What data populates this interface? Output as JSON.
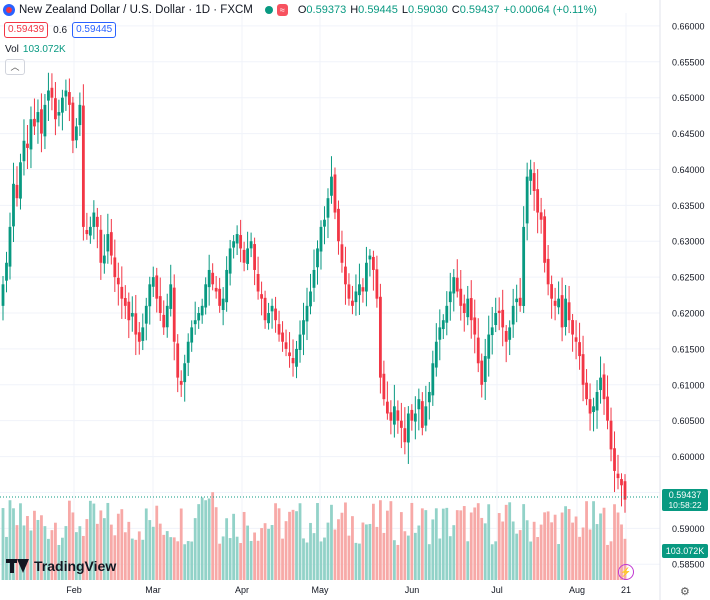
{
  "header": {
    "title": "New Zealand Dollar / U.S. Dollar · 1D · FXCM",
    "chip": "≈",
    "open_label": "O",
    "open": "0.59373",
    "high_label": "H",
    "high": "0.59445",
    "low_label": "L",
    "low": "0.59030",
    "close_label": "C",
    "close": "0.59437",
    "change": "+0.00064 (+0.11%)"
  },
  "quote": {
    "sell": "0.59439",
    "spread": "0.6",
    "buy": "0.59445"
  },
  "volume": {
    "label": "Vol",
    "value": "103.072K"
  },
  "collapse_icon": "chevron-up-icon",
  "logo_text": "TradingView",
  "colors": {
    "up": "#089981",
    "down": "#f23645",
    "vol_up": "#92d2c8",
    "vol_down": "#f7a9a7",
    "grid": "#f0f3fa",
    "price_line": "#089981"
  },
  "chart_data": {
    "type": "candlestick",
    "instrument": "NZDUSD",
    "interval": "1D",
    "y_axis": {
      "ticks": [
        "0.66000",
        "0.65500",
        "0.65000",
        "0.64500",
        "0.64000",
        "0.63500",
        "0.63000",
        "0.62500",
        "0.62000",
        "0.61500",
        "0.61000",
        "0.60500",
        "0.60000",
        "0.59500",
        "0.59000",
        "0.58500"
      ],
      "range": [
        0.5835,
        0.6618
      ]
    },
    "x_axis": {
      "ticks": [
        "Feb",
        "Mar",
        "Apr",
        "May",
        "Jun",
        "Jul",
        "Aug",
        "21"
      ]
    },
    "last_price": "0.59437",
    "countdown": "10:58:22",
    "last_volume": "103.072K",
    "close_series": [
      0.624,
      0.627,
      0.632,
      0.638,
      0.636,
      0.641,
      0.644,
      0.643,
      0.647,
      0.646,
      0.648,
      0.645,
      0.649,
      0.651,
      0.65,
      0.647,
      0.648,
      0.65,
      0.651,
      0.649,
      0.644,
      0.646,
      0.649,
      0.632,
      0.631,
      0.632,
      0.634,
      0.632,
      0.627,
      0.628,
      0.631,
      0.628,
      0.625,
      0.624,
      0.622,
      0.621,
      0.619,
      0.62,
      0.617,
      0.616,
      0.618,
      0.621,
      0.624,
      0.625,
      0.622,
      0.62,
      0.618,
      0.621,
      0.624,
      0.616,
      0.611,
      0.61,
      0.613,
      0.616,
      0.618,
      0.619,
      0.62,
      0.621,
      0.624,
      0.626,
      0.624,
      0.623,
      0.621,
      0.622,
      0.626,
      0.629,
      0.63,
      0.631,
      0.629,
      0.627,
      0.629,
      0.63,
      0.626,
      0.623,
      0.622,
      0.619,
      0.62,
      0.621,
      0.619,
      0.617,
      0.616,
      0.615,
      0.614,
      0.613,
      0.615,
      0.617,
      0.619,
      0.621,
      0.623,
      0.626,
      0.629,
      0.632,
      0.633,
      0.636,
      0.639,
      0.634,
      0.63,
      0.627,
      0.624,
      0.622,
      0.621,
      0.623,
      0.624,
      0.623,
      0.627,
      0.628,
      0.626,
      0.622,
      0.611,
      0.608,
      0.606,
      0.605,
      0.607,
      0.605,
      0.604,
      0.602,
      0.606,
      0.605,
      0.606,
      0.608,
      0.604,
      0.607,
      0.609,
      0.613,
      0.616,
      0.618,
      0.619,
      0.621,
      0.623,
      0.625,
      0.623,
      0.621,
      0.62,
      0.622,
      0.619,
      0.617,
      0.613,
      0.61,
      0.614,
      0.617,
      0.618,
      0.62,
      0.62,
      0.618,
      0.616,
      0.618,
      0.621,
      0.622,
      0.621,
      0.632,
      0.639,
      0.64,
      0.637,
      0.634,
      0.633,
      0.627,
      0.624,
      0.622,
      0.621,
      0.622,
      0.618,
      0.622,
      0.619,
      0.617,
      0.616,
      0.614,
      0.61,
      0.608,
      0.606,
      0.607,
      0.609,
      0.611,
      0.608,
      0.605,
      0.601,
      0.598,
      0.597,
      0.596,
      0.594
    ]
  }
}
